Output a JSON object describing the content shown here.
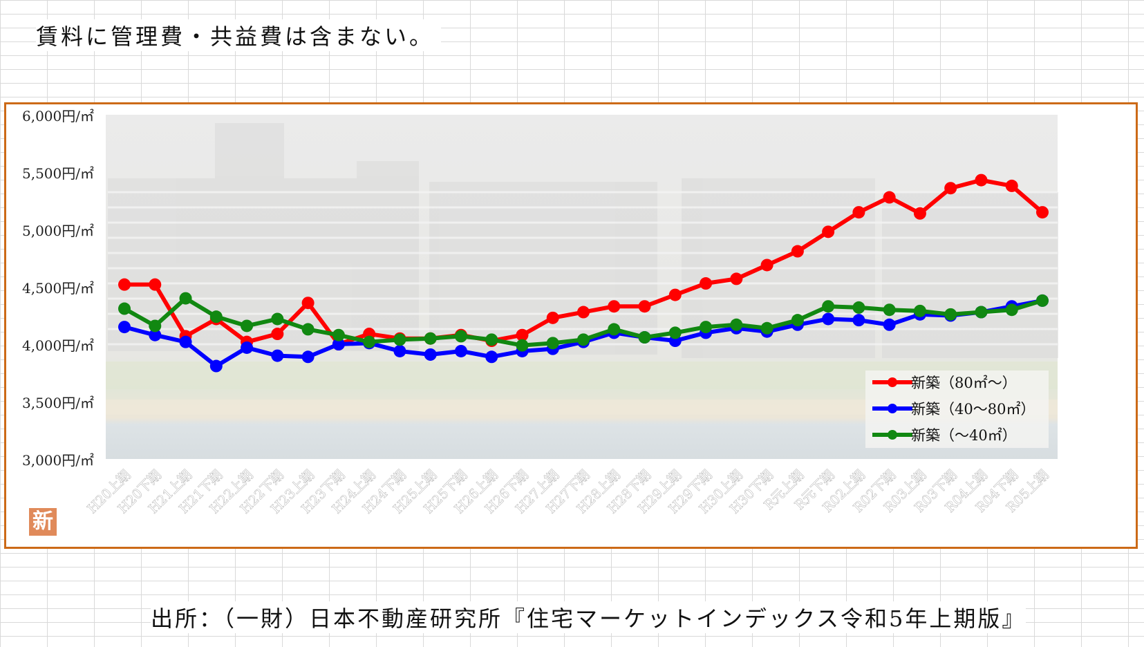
{
  "note": "賃料に管理費・共益費は含まない。",
  "source": "出所：（一財）日本不動産研究所『住宅マーケットインデックス令和5年上期版』",
  "badge": "新",
  "colors": {
    "frame": "#cc6a17",
    "series_80_plus": "#ff0000",
    "series_40_80": "#0000ff",
    "series_under_40": "#118811"
  },
  "chart_data": {
    "type": "line",
    "title": "",
    "xlabel": "",
    "ylabel": "",
    "ylim": [
      3000,
      6000
    ],
    "yticks": [
      "3,000円/㎡",
      "3,500円/㎡",
      "4,000円/㎡",
      "4,500円/㎡",
      "5,000円/㎡",
      "5,500円/㎡",
      "6,000円/㎡"
    ],
    "categories": [
      "H20上期",
      "H20下期",
      "H21上期",
      "H21下期",
      "H22上期",
      "H22下期",
      "H23上期",
      "H23下期",
      "H24上期",
      "H24下期",
      "H25上期",
      "H25下期",
      "H26上期",
      "H26下期",
      "H27上期",
      "H27下期",
      "H28上期",
      "H28下期",
      "H29上期",
      "H29下期",
      "H30上期",
      "H30下期",
      "R元上期",
      "R元下期",
      "R02上期",
      "R02下期",
      "R03上期",
      "R03下期",
      "R04上期",
      "R04下期",
      "R05上期"
    ],
    "legend_position": "bottom-right",
    "grid": false,
    "series": [
      {
        "name": "新築（80㎡～）",
        "color": "#ff0000",
        "values": [
          4520,
          4520,
          4070,
          4220,
          4020,
          4090,
          4360,
          4000,
          4090,
          4050,
          4050,
          4080,
          4030,
          4080,
          4230,
          4280,
          4330,
          4330,
          4430,
          4530,
          4570,
          4690,
          4810,
          4980,
          5150,
          5280,
          5140,
          5360,
          5430,
          5380,
          5150
        ]
      },
      {
        "name": "新築（40～80㎡）",
        "color": "#0000ff",
        "values": [
          4150,
          4080,
          4020,
          3810,
          3970,
          3900,
          3890,
          4000,
          4010,
          3940,
          3910,
          3940,
          3890,
          3940,
          3960,
          4020,
          4100,
          4060,
          4030,
          4100,
          4140,
          4110,
          4170,
          4220,
          4210,
          4170,
          4260,
          4250,
          4280,
          4330,
          4380
        ]
      },
      {
        "name": "新築（～40㎡）",
        "color": "#118811",
        "values": [
          4310,
          4160,
          4400,
          4240,
          4160,
          4220,
          4130,
          4080,
          4020,
          4040,
          4050,
          4070,
          4040,
          3990,
          4010,
          4040,
          4130,
          4060,
          4100,
          4150,
          4170,
          4140,
          4210,
          4330,
          4320,
          4300,
          4290,
          4260,
          4280,
          4300,
          4380
        ]
      }
    ]
  }
}
